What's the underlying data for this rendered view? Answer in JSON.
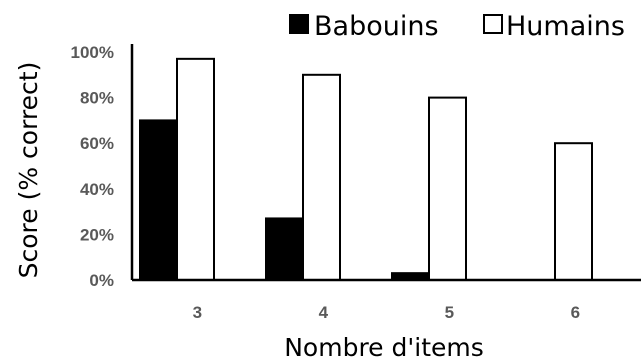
{
  "chart_data": {
    "type": "bar",
    "title": "",
    "xlabel": "Nombre d'items",
    "ylabel": "Score (% correct)",
    "categories": [
      "3",
      "4",
      "5",
      "6"
    ],
    "series": [
      {
        "name": "Babouins",
        "values": [
          70,
          27,
          3,
          0
        ],
        "color": "#000000",
        "fill": "solid"
      },
      {
        "name": "Humains",
        "values": [
          97,
          90,
          80,
          60
        ],
        "color": "#ffffff",
        "fill": "outlined"
      }
    ],
    "ylim": [
      0,
      100
    ],
    "yticks": [
      "0%",
      "20%",
      "40%",
      "60%",
      "80%",
      "100%"
    ],
    "grid": false,
    "legend": "top-right"
  }
}
